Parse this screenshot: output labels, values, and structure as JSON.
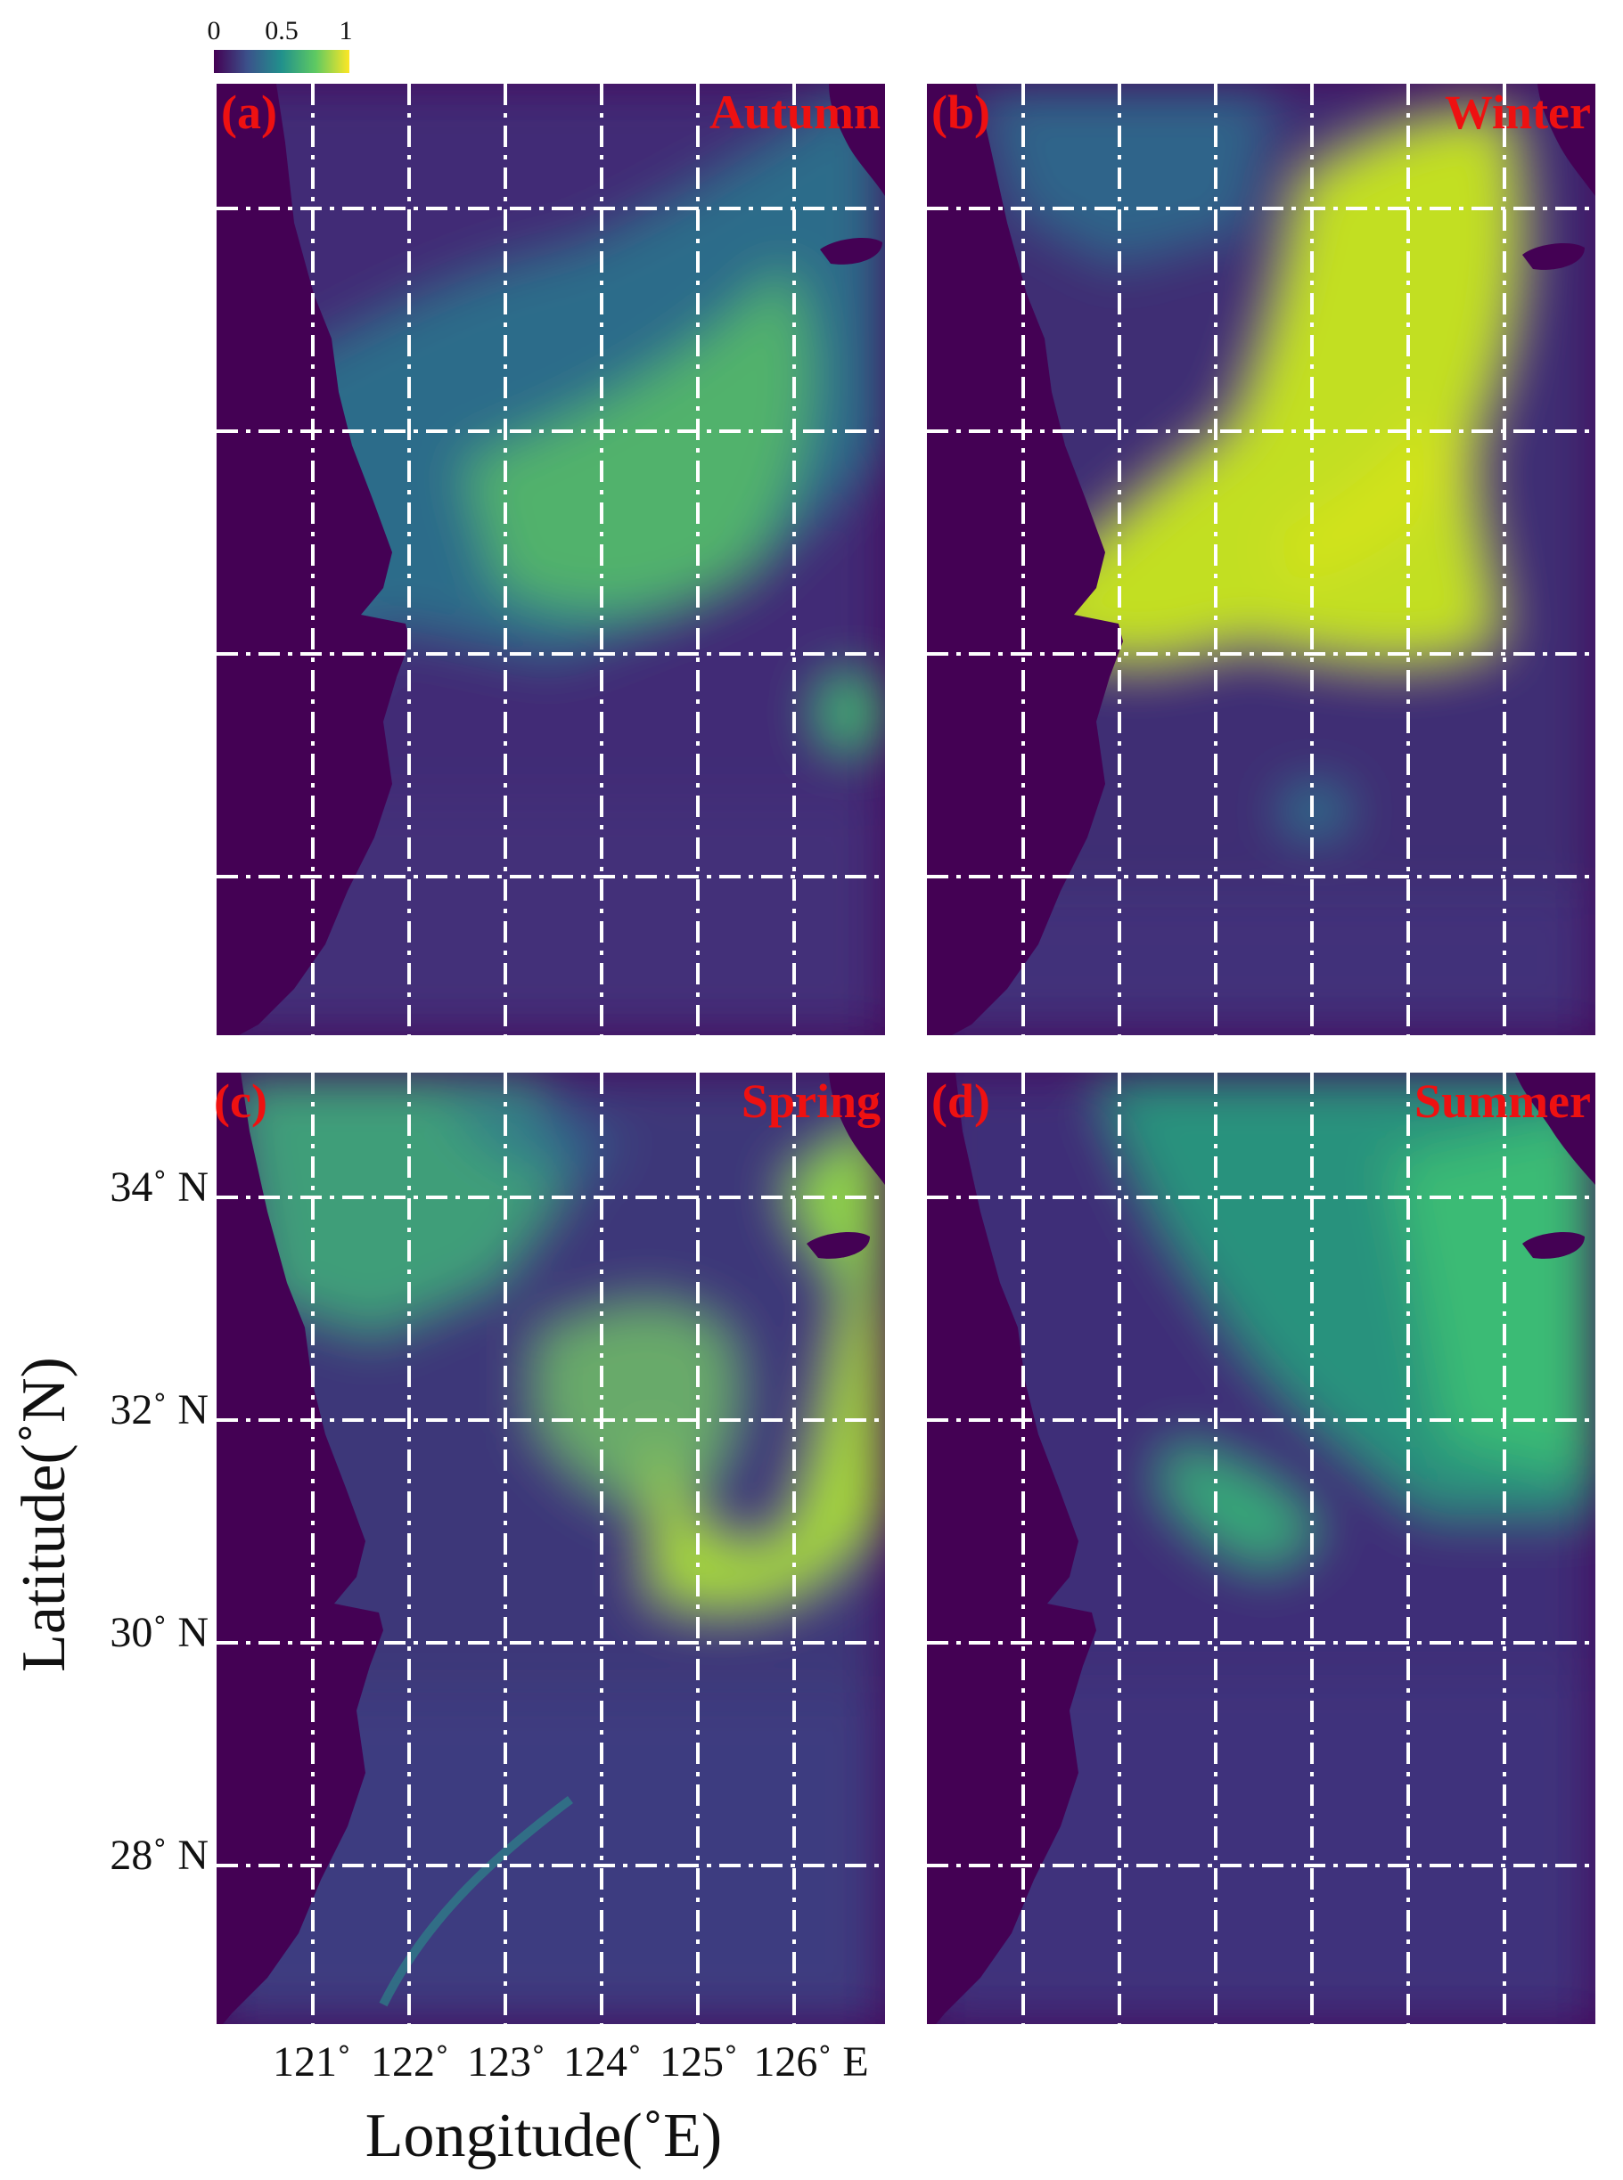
{
  "colorbar": {
    "ticks": [
      "0",
      "0.5",
      "1"
    ],
    "colormap": "viridis"
  },
  "panels": [
    {
      "label": "(a)",
      "season": "Autumn"
    },
    {
      "label": "(b)",
      "season": "Winter"
    },
    {
      "label": "(c)",
      "season": "Spring"
    },
    {
      "label": "(d)",
      "season": "Summer"
    }
  ],
  "axes": {
    "xlabel": "Longitude(˚E)",
    "ylabel": "Latitude(˚N)",
    "x_ticks": [
      "121˚",
      "122˚",
      "123˚",
      "124˚",
      "125˚",
      "126˚ E"
    ],
    "y_ticks": [
      "34˚ N",
      "32˚ N",
      "30˚ N",
      "28˚ N"
    ]
  },
  "colors": {
    "label_red": "#ee1111",
    "land": "#440154",
    "low": "#46327e",
    "mid": "#21918c",
    "high": "#bddf26",
    "grid": "#ffffff"
  }
}
